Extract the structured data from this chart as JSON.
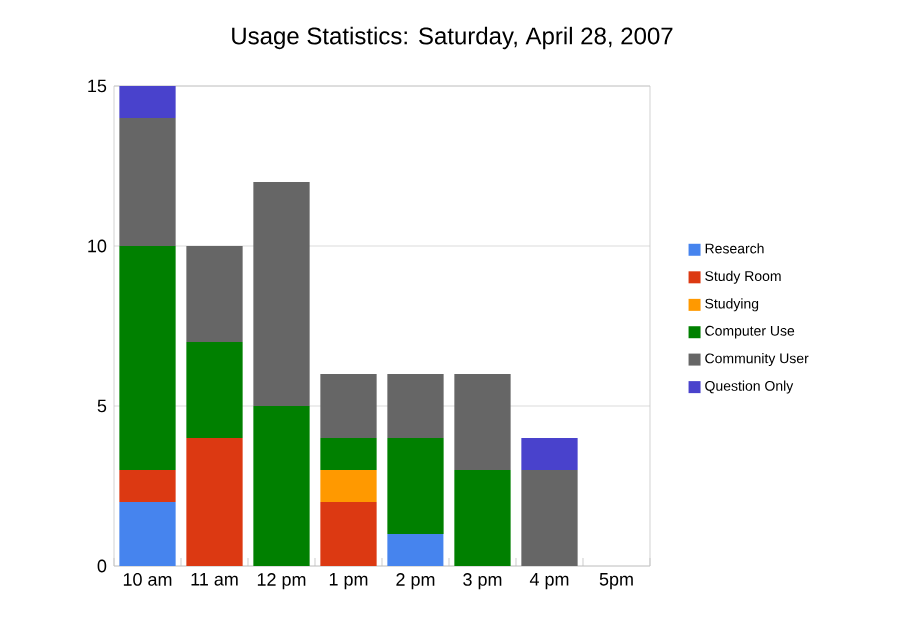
{
  "chart_data": {
    "type": "bar",
    "title": "Usage Statistics: Saturday, April 28, 2007",
    "categories": [
      "10 am",
      "11 am",
      "12 pm",
      "1 pm",
      "2 pm",
      "3 pm",
      "4 pm",
      "5pm"
    ],
    "stacked": true,
    "ylim": [
      0,
      15
    ],
    "yticks": [
      0,
      5,
      10,
      15
    ],
    "grid": "y",
    "legend": "right",
    "series": [
      {
        "name": "Research",
        "color": "#4684ee",
        "values": [
          2,
          0,
          0,
          0,
          1,
          0,
          0,
          0
        ]
      },
      {
        "name": "Study Room",
        "color": "#dc3912",
        "values": [
          1,
          4,
          0,
          2,
          0,
          0,
          0,
          0
        ]
      },
      {
        "name": "Studying",
        "color": "#ff9900",
        "values": [
          0,
          0,
          0,
          1,
          0,
          0,
          0,
          0
        ]
      },
      {
        "name": "Computer Use",
        "color": "#008000",
        "values": [
          7,
          3,
          5,
          1,
          3,
          3,
          0,
          0
        ]
      },
      {
        "name": "Community User",
        "color": "#666666",
        "values": [
          4,
          3,
          7,
          2,
          2,
          3,
          3,
          0
        ]
      },
      {
        "name": "Question Only",
        "color": "#4942cc",
        "values": [
          1,
          0,
          0,
          0,
          0,
          0,
          1,
          0
        ]
      }
    ]
  }
}
